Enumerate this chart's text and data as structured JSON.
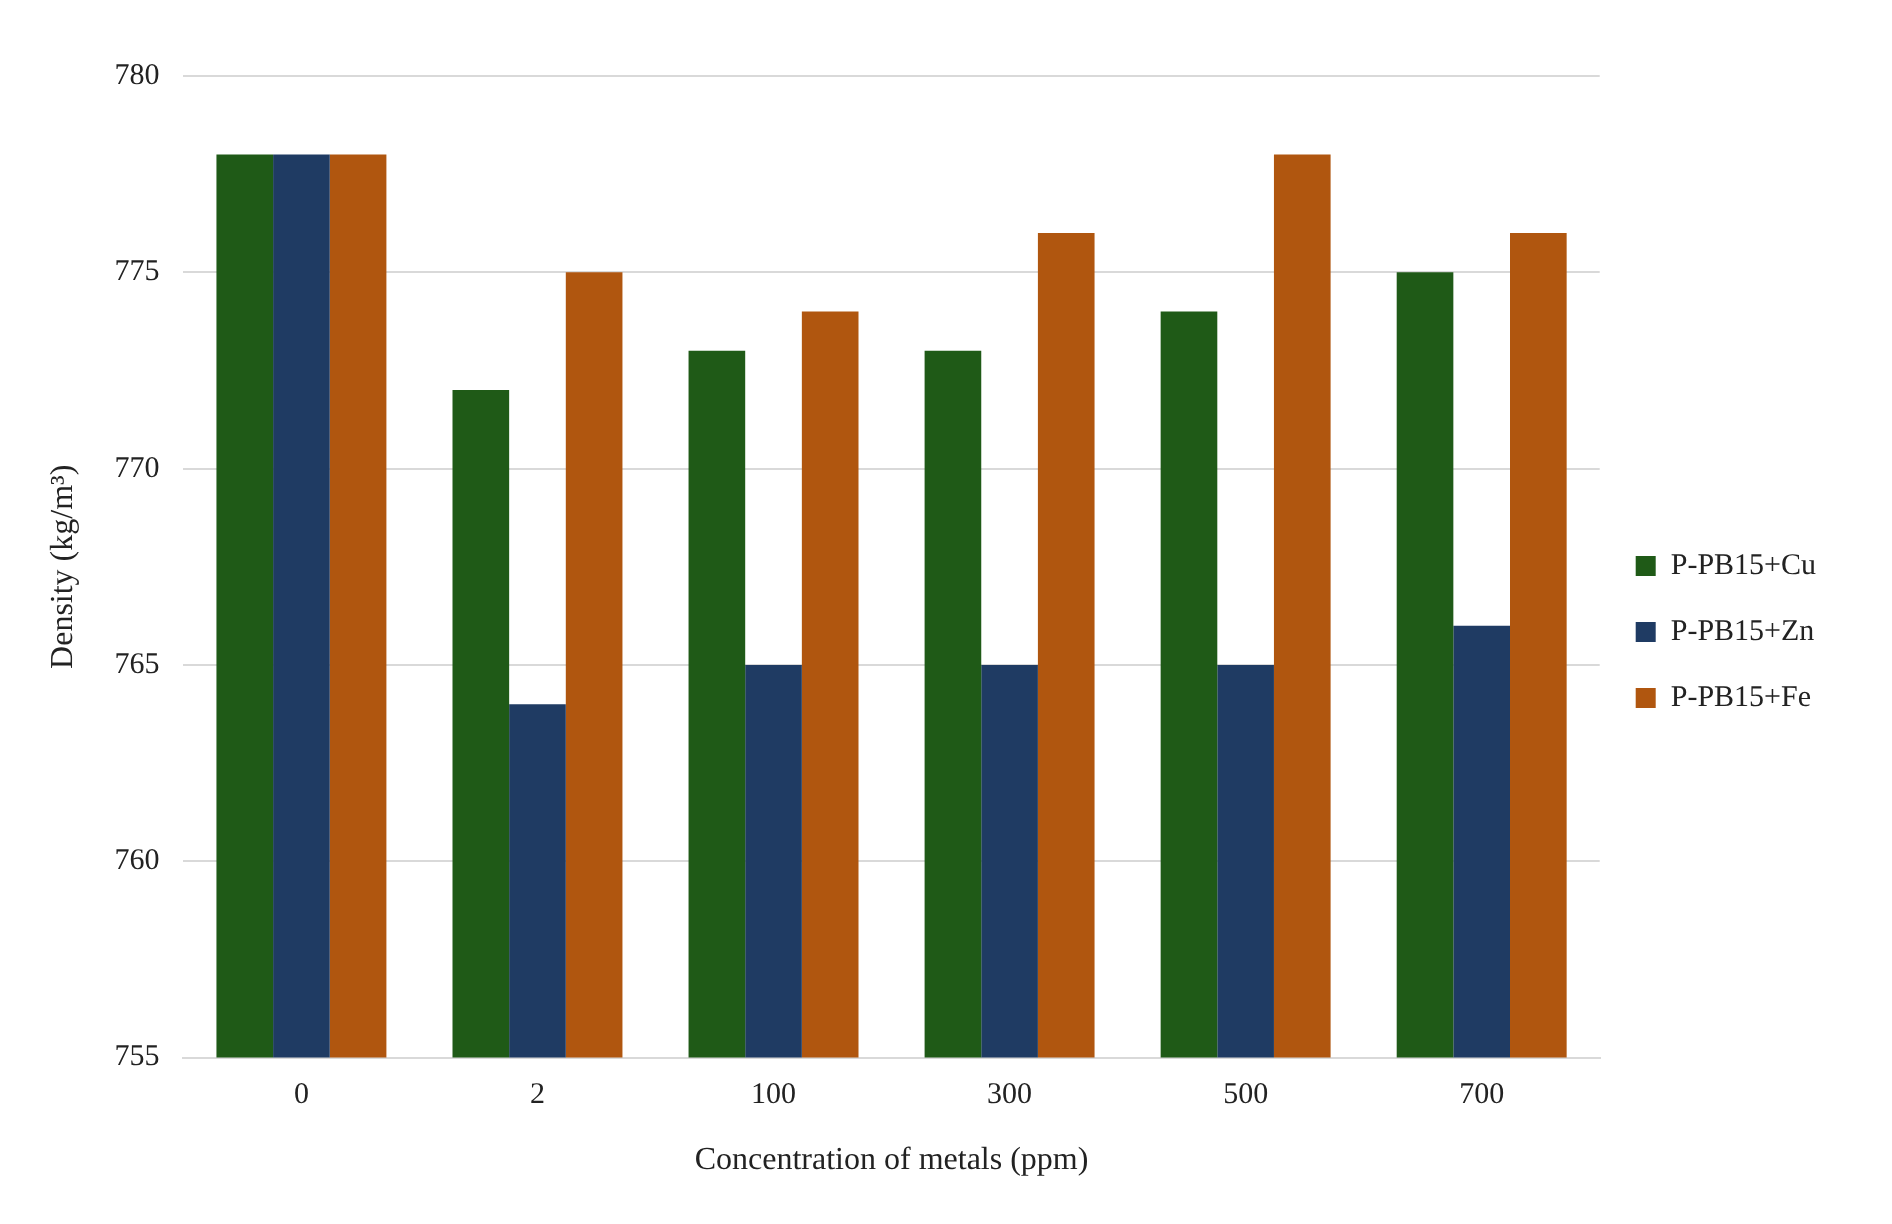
{
  "chart_data": {
    "type": "bar",
    "xlabel": "Concentration of metals (ppm)",
    "ylabel": "Density (kg/m³)",
    "categories": [
      "0",
      "2",
      "100",
      "300",
      "500",
      "700"
    ],
    "series": [
      {
        "name": "P-PB15+Cu",
        "color": "#1f5a17",
        "values": [
          778,
          772,
          773,
          773,
          774,
          775
        ]
      },
      {
        "name": "P-PB15+Zn",
        "color": "#1f3b63",
        "values": [
          778,
          764,
          765,
          765,
          765,
          766
        ]
      },
      {
        "name": "P-PB15+Fe",
        "color": "#b0560f",
        "values": [
          778,
          775,
          774,
          776,
          778,
          776
        ]
      }
    ],
    "ylim": [
      755,
      780
    ],
    "yticks": [
      755,
      760,
      765,
      770,
      775,
      780
    ],
    "grid": "y",
    "legend": "right"
  }
}
